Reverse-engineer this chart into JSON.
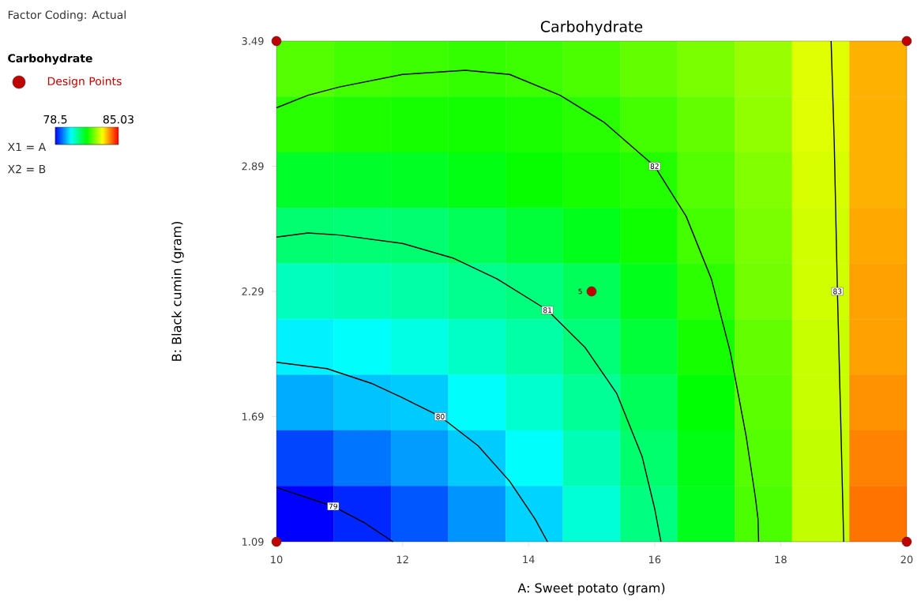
{
  "chart_data": [
    {
      "type": "heatmap",
      "tick_labels": false,
      "categories": [
        null,
        null,
        null,
        null,
        null,
        null,
        null,
        null,
        null,
        null,
        null
      ],
      "y_categories": [
        null,
        null,
        null,
        null,
        null,
        null,
        null,
        null,
        null
      ],
      "clim": [
        78.5,
        85.03
      ],
      "cticks": [
        78.5,
        85.03
      ],
      "cells": [
        [
          82.3,
          82.2,
          82.15,
          82.1,
          82.15,
          82.25,
          82.4,
          82.55,
          82.75,
          83.2,
          83.9
        ],
        [
          82.02,
          81.95,
          81.9,
          81.88,
          81.93,
          82.02,
          82.2,
          82.4,
          82.7,
          83.2,
          83.9
        ],
        [
          81.5,
          81.5,
          81.55,
          81.65,
          81.8,
          81.9,
          82.0,
          82.3,
          82.6,
          83.15,
          83.9
        ],
        [
          81.05,
          81.02,
          81.05,
          81.2,
          81.4,
          81.6,
          81.85,
          82.2,
          82.55,
          83.1,
          83.95
        ],
        [
          80.55,
          80.6,
          80.7,
          80.85,
          80.97,
          81.2,
          81.6,
          82.05,
          82.5,
          83.1,
          84.0
        ],
        [
          80.05,
          80.15,
          80.3,
          80.5,
          80.7,
          81.0,
          81.4,
          81.9,
          82.4,
          83.05,
          84.0
        ],
        [
          79.6,
          79.75,
          79.8,
          80.15,
          80.45,
          80.8,
          81.2,
          81.75,
          82.35,
          83.05,
          84.1
        ],
        [
          78.95,
          79.25,
          79.5,
          79.8,
          80.15,
          80.6,
          81.07,
          81.65,
          82.3,
          83.0,
          84.2
        ],
        [
          78.5,
          78.75,
          79.05,
          79.45,
          79.85,
          80.4,
          80.95,
          81.6,
          82.25,
          83.0,
          84.3
        ]
      ]
    },
    {
      "type": "line",
      "title": "Carbohydrate",
      "xlabel": "A: Sweet potato (gram)",
      "ylabel": "B: Black cumin (gram)",
      "legend_title": "Carbohydrate",
      "legend": "left",
      "xlim": [
        10,
        20
      ],
      "ylim": [
        1.09,
        3.49
      ],
      "xticks": [
        10,
        12,
        14,
        16,
        18,
        20
      ],
      "yticks": [
        1.09,
        1.69,
        2.29,
        2.89,
        3.49
      ],
      "annotations": [
        "Factor Coding: Actual",
        {
          "text": "5",
          "x": 15,
          "y": 2.29
        },
        "X1 = A",
        "X2 = B"
      ],
      "series": [
        {
          "name": "79",
          "color": "#000000",
          "x": [
            10,
            10.5,
            10.9,
            11.4,
            11.85
          ],
          "values": [
            1.35,
            1.3,
            1.26,
            1.18,
            1.09
          ]
        },
        {
          "name": "80",
          "color": "#000000",
          "x": [
            10,
            10.8,
            11.5,
            12.0,
            12.6,
            13.2,
            13.7,
            14.1,
            14.3
          ],
          "values": [
            1.95,
            1.92,
            1.85,
            1.78,
            1.69,
            1.55,
            1.38,
            1.2,
            1.09
          ]
        },
        {
          "name": "81",
          "color": "#000000",
          "x": [
            10,
            10.5,
            11,
            12,
            12.8,
            13.5,
            14.3,
            14.9,
            15.4,
            15.8,
            16.0,
            16.1
          ],
          "values": [
            2.55,
            2.57,
            2.56,
            2.52,
            2.45,
            2.35,
            2.2,
            2.02,
            1.8,
            1.5,
            1.25,
            1.09
          ]
        },
        {
          "name": "82",
          "color": "#000000",
          "x": [
            10,
            10.25,
            10.5,
            11,
            12,
            13,
            13.7,
            14.5,
            15.2,
            16,
            16.5,
            16.9,
            17.2,
            17.45,
            17.6,
            17.62,
            17.64,
            17.65
          ],
          "values": [
            3.17,
            3.2,
            3.23,
            3.27,
            3.33,
            3.35,
            3.33,
            3.23,
            3.1,
            2.89,
            2.65,
            2.35,
            2.0,
            1.6,
            1.3,
            1.25,
            1.2,
            1.09
          ]
        },
        {
          "name": "83",
          "color": "#000000",
          "x": [
            18.8,
            18.85,
            18.9,
            18.95,
            19.0
          ],
          "values": [
            3.49,
            3.0,
            2.29,
            1.7,
            1.09
          ]
        },
        {
          "type": "scatter",
          "name": "Design Points",
          "color": "#c00000",
          "marker": "circle",
          "x": [
            10,
            10,
            20,
            20,
            15
          ],
          "values": [
            1.09,
            3.49,
            1.09,
            3.49,
            2.29
          ]
        }
      ]
    }
  ]
}
